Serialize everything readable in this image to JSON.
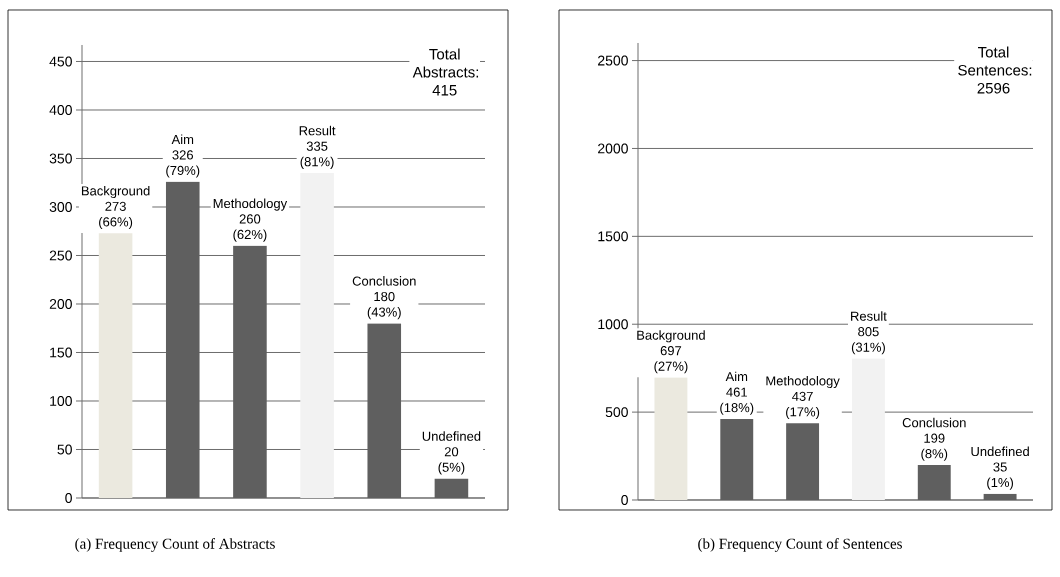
{
  "chart_data": [
    {
      "type": "bar",
      "title": "(a) Frequency Count of Abstracts",
      "categories": [
        "Background",
        "Aim",
        "Methodology",
        "Result",
        "Conclusion",
        "Undefined"
      ],
      "values": [
        273,
        326,
        260,
        335,
        180,
        20
      ],
      "colors": [
        "#ebe9df",
        "#5f5f5f",
        "#5f5f5f",
        "#f2f2f2",
        "#5f5f5f",
        "#5f5f5f"
      ],
      "value_labels": [
        "273 (66%)",
        "326 (79%)",
        "260 (62%)",
        "335 (81%)",
        "180 (43%)",
        "20 (5%)"
      ],
      "annotations": [
        "Total Abstracts: 415"
      ],
      "ylim": [
        0,
        467
      ],
      "yticks": [
        0,
        50,
        100,
        150,
        200,
        250,
        300,
        350,
        400,
        450
      ],
      "grid": "y",
      "tick_labels": "y"
    },
    {
      "type": "bar",
      "title": "(b) Frequency Count of Sentences",
      "categories": [
        "Background",
        "Aim",
        "Methodology",
        "Result",
        "Conclusion",
        "Undefined"
      ],
      "values": [
        697,
        461,
        437,
        805,
        199,
        35
      ],
      "colors": [
        "#ebe9df",
        "#5f5f5f",
        "#5f5f5f",
        "#f2f2f2",
        "#5f5f5f",
        "#5f5f5f"
      ],
      "value_labels": [
        "697 (27%)",
        "461 (18%)",
        "437 (17%)",
        "805 (31%)",
        "199 (8%)",
        "35 (1%)"
      ],
      "annotations": [
        "Total Sentences: 2596"
      ],
      "ylim": [
        0,
        2600
      ],
      "yticks": [
        0,
        500,
        1000,
        1500,
        2000,
        2500
      ],
      "grid": "y",
      "tick_labels": "y"
    }
  ]
}
